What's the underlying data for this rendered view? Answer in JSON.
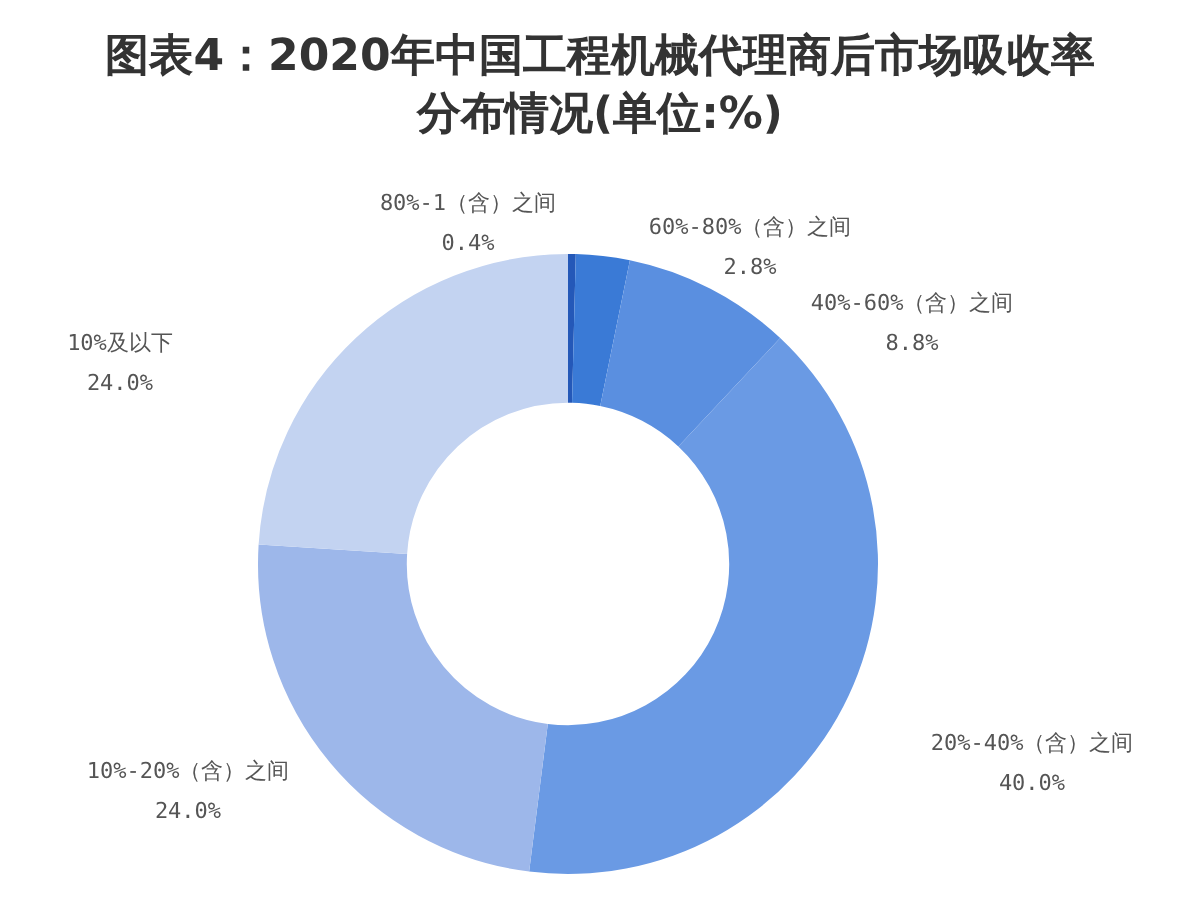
{
  "chart_data": {
    "type": "donut",
    "title": "图表4：2020年中国工程机械代理商后市场吸收率分布情况(单位:%)",
    "categories": [
      "80%-1（含）之间",
      "60%-80%（含）之间",
      "40%-60%（含）之间",
      "20%-40%（含）之间",
      "10%-20%（含）之间",
      "10%及以下"
    ],
    "values": [
      0.4,
      2.8,
      8.8,
      40.0,
      24.0,
      24.0
    ],
    "colors": [
      "#2458b8",
      "#3a7ad6",
      "#5a8fe0",
      "#6a9ae4",
      "#9db7ea",
      "#c3d3f1"
    ],
    "value_labels": [
      "0.4%",
      "2.8%",
      "8.8%",
      "40.0%",
      "24.0%",
      "24.0%"
    ]
  }
}
